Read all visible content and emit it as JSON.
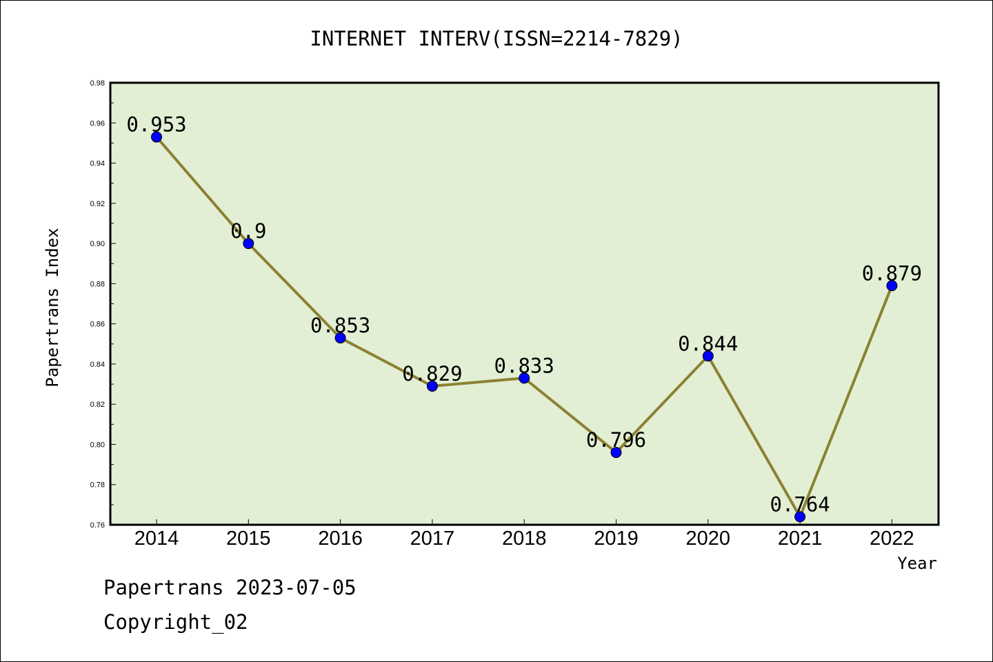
{
  "chart_data": {
    "type": "line",
    "title": "INTERNET INTERV(ISSN=2214-7829)",
    "xlabel": "Year",
    "ylabel": "Papertrans Index",
    "categories": [
      "2014",
      "2015",
      "2016",
      "2017",
      "2018",
      "2019",
      "2020",
      "2021",
      "2022"
    ],
    "series": [
      {
        "values": [
          0.953,
          0.9,
          0.853,
          0.829,
          0.833,
          0.796,
          0.844,
          0.764,
          0.879
        ],
        "labels": [
          "0.953",
          "0.9",
          "0.853",
          "0.829",
          "0.833",
          "0.796",
          "0.844",
          "0.764",
          "0.879"
        ]
      }
    ],
    "ylim": [
      0.76,
      0.98
    ],
    "yticks": [
      "0.76",
      "0.78",
      "0.80",
      "0.82",
      "0.84",
      "0.86",
      "0.88",
      "0.90",
      "0.92",
      "0.94",
      "0.96",
      "0.98"
    ],
    "grid": false,
    "colors": {
      "plot_background": "#e2efd4",
      "line": "#8b8033",
      "marker": "#0000ff"
    }
  },
  "footer": {
    "line1": "Papertrans 2023-07-05",
    "line2": "Copyright_02"
  }
}
